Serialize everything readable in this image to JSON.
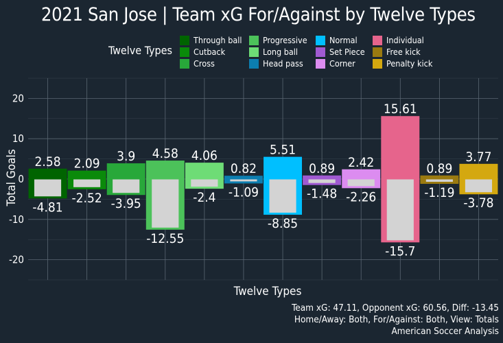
{
  "title": "2021 San Jose | Team xG For/Against by Twelve Types",
  "legend": {
    "title": "Twelve Types",
    "items": [
      {
        "label": "Through ball",
        "color": "#006400"
      },
      {
        "label": "Cutback",
        "color": "#0a8a0a"
      },
      {
        "label": "Cross",
        "color": "#28a83a"
      },
      {
        "label": "Progressive",
        "color": "#4cc25a"
      },
      {
        "label": "Long ball",
        "color": "#6edc76"
      },
      {
        "label": "Head pass",
        "color": "#0c7eb0"
      },
      {
        "label": "Normal",
        "color": "#00bfff"
      },
      {
        "label": "Set Piece",
        "color": "#a05ad2"
      },
      {
        "label": "Corner",
        "color": "#dc8cf0"
      },
      {
        "label": "Individual",
        "color": "#e6648c"
      },
      {
        "label": "Free kick",
        "color": "#9a7a10"
      },
      {
        "label": "Penalty kick",
        "color": "#d4a810"
      }
    ]
  },
  "chart_data": {
    "type": "bar",
    "categories": [
      "Through ball",
      "Cutback",
      "Cross",
      "Progressive",
      "Long ball",
      "Head pass",
      "Normal",
      "Set Piece",
      "Corner",
      "Individual",
      "Free kick",
      "Penalty kick"
    ],
    "series": [
      {
        "name": "For",
        "values": [
          2.58,
          2.09,
          3.9,
          4.58,
          4.06,
          0.82,
          5.51,
          0.89,
          2.42,
          15.61,
          0.89,
          3.77
        ]
      },
      {
        "name": "Against",
        "values": [
          -4.81,
          -2.52,
          -3.95,
          -12.55,
          -2.4,
          -1.09,
          -8.85,
          -1.48,
          -2.26,
          -15.7,
          -1.19,
          -3.78
        ]
      }
    ],
    "for_labels": [
      "2.58",
      "2.09",
      "3.9",
      "4.58",
      "4.06",
      "0.82",
      "5.51",
      "0.89",
      "2.42",
      "15.61",
      "0.89",
      "3.77"
    ],
    "against_labels": [
      "-4.81",
      "-2.52",
      "-3.95",
      "-12.55",
      "-2.4",
      "-1.09",
      "-8.85",
      "-1.48",
      "-2.26",
      "-15.7",
      "-1.19",
      "-3.78"
    ],
    "xlabel": "Twelve Types",
    "ylabel": "Total Goals",
    "ylim": [
      -25,
      25
    ],
    "yticks": [
      -20,
      -10,
      0,
      10,
      20
    ],
    "ytick_labels": [
      "-20",
      "-10",
      "0",
      "10",
      "20"
    ],
    "grid": true,
    "legend_position": "top",
    "against_color": "#d3d3d3"
  },
  "caption": {
    "line1": "Team xG: 47.11, Opponent xG: 60.56, Diff: -13.45",
    "line2": "Home/Away: Both, For/Against: Both, View: Totals",
    "line3": "American Soccer Analysis"
  }
}
